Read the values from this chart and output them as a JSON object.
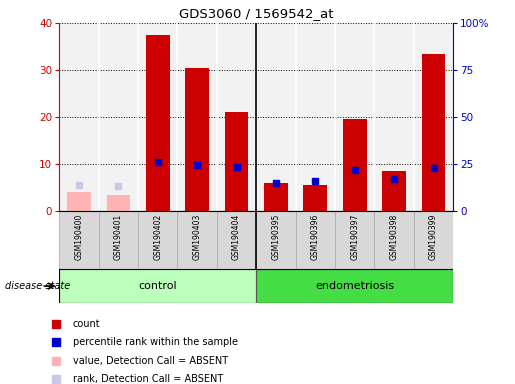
{
  "title": "GDS3060 / 1569542_at",
  "samples": [
    "GSM190400",
    "GSM190401",
    "GSM190402",
    "GSM190403",
    "GSM190404",
    "GSM190395",
    "GSM190396",
    "GSM190397",
    "GSM190398",
    "GSM190399"
  ],
  "count_values": [
    null,
    null,
    37.5,
    30.5,
    21.0,
    6.0,
    5.5,
    19.5,
    8.5,
    33.5
  ],
  "count_absent": [
    4.0,
    3.5,
    null,
    null,
    null,
    null,
    null,
    null,
    null,
    null
  ],
  "percentile_values": [
    null,
    null,
    26.0,
    24.5,
    23.5,
    15.0,
    16.0,
    22.0,
    17.0,
    23.0
  ],
  "rank_absent": [
    14.0,
    13.5,
    null,
    null,
    null,
    null,
    null,
    null,
    null,
    null
  ],
  "ylim_left": [
    0,
    40
  ],
  "ylim_right": [
    0,
    100
  ],
  "yticks_left": [
    0,
    10,
    20,
    30,
    40
  ],
  "yticks_right": [
    0,
    25,
    50,
    75,
    100
  ],
  "yticklabels_right": [
    "0",
    "25",
    "50",
    "75",
    "100%"
  ],
  "color_count": "#cc0000",
  "color_percentile": "#0000cc",
  "color_absent_value": "#ffb3b3",
  "color_absent_rank": "#c8c8e8",
  "control_color": "#bbffbb",
  "endometriosis_color": "#44dd44",
  "legend_items": [
    {
      "label": "count",
      "color": "#cc0000"
    },
    {
      "label": "percentile rank within the sample",
      "color": "#0000cc"
    },
    {
      "label": "value, Detection Call = ABSENT",
      "color": "#ffb3b3"
    },
    {
      "label": "rank, Detection Call = ABSENT",
      "color": "#c8c8e8"
    }
  ]
}
